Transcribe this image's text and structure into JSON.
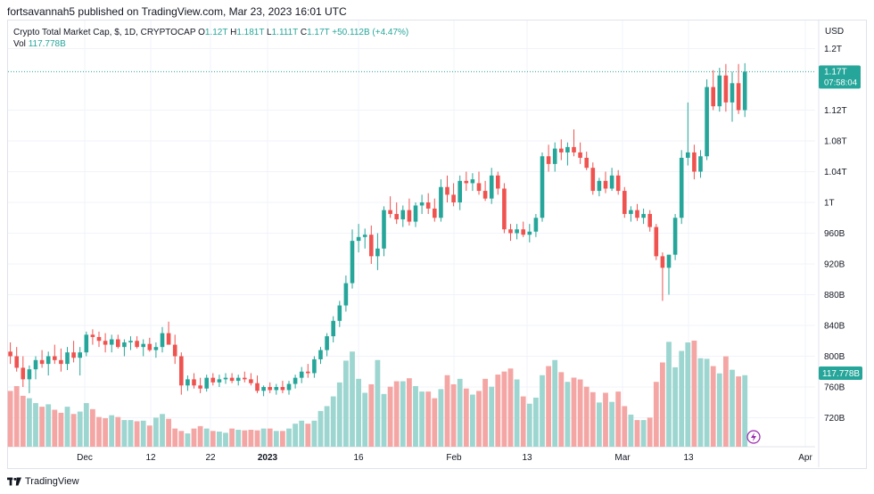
{
  "header": {
    "publisher_line": "fortsavannah5 published on TradingView.com, Mar 23, 2023 16:01 UTC"
  },
  "legend": {
    "title": "Crypto Total Market Cap, $, 1D, CRYPTOCAP",
    "o_label": "O",
    "o_value": "1.12T",
    "h_label": "H",
    "h_value": "1.181T",
    "l_label": "L",
    "l_value": "1.111T",
    "c_label": "C",
    "c_value": "1.17T",
    "change": "+50.112B (+4.47%)",
    "vol_label": "Vol",
    "vol_value": "117.778B"
  },
  "axis": {
    "currency": "USD",
    "price_ticks": [
      "1.2T",
      "1.12T",
      "1.08T",
      "1.04T",
      "1T",
      "960B",
      "920B",
      "880B",
      "840B",
      "800B",
      "760B",
      "720B"
    ],
    "time_ticks": [
      "Dec",
      "12",
      "22",
      "2023",
      "16",
      "Feb",
      "13",
      "Mar",
      "13",
      "Apr"
    ]
  },
  "price_tag": {
    "value": "1.17T",
    "countdown": "07:58:04"
  },
  "volume_tag": {
    "value": "117.778B"
  },
  "footer": {
    "brand": "TradingView"
  },
  "colors": {
    "up": "#26a69a",
    "down": "#ef5350",
    "vol_up": "#9dd6d0",
    "vol_down": "#f4a6a4",
    "grid": "#f0f3fa",
    "axis_text": "#131722"
  },
  "chart_data": {
    "type": "candlestick",
    "title": "Crypto Total Market Cap, $, 1D, CRYPTOCAP",
    "x_range": [
      "2022-11-21",
      "2023-03-23"
    ],
    "price_unit": "USD (billions)",
    "ylim": [
      690,
      1240
    ],
    "volume_unit": "USD (billions)",
    "candles": [
      {
        "o": 806,
        "h": 818,
        "l": 790,
        "c": 800,
        "v": 92
      },
      {
        "o": 800,
        "h": 812,
        "l": 780,
        "c": 785,
        "v": 100
      },
      {
        "o": 785,
        "h": 800,
        "l": 760,
        "c": 770,
        "v": 84
      },
      {
        "o": 770,
        "h": 788,
        "l": 752,
        "c": 783,
        "v": 80
      },
      {
        "o": 783,
        "h": 800,
        "l": 770,
        "c": 795,
        "v": 72
      },
      {
        "o": 795,
        "h": 808,
        "l": 785,
        "c": 790,
        "v": 66
      },
      {
        "o": 790,
        "h": 806,
        "l": 775,
        "c": 800,
        "v": 70
      },
      {
        "o": 800,
        "h": 815,
        "l": 790,
        "c": 795,
        "v": 61
      },
      {
        "o": 795,
        "h": 810,
        "l": 780,
        "c": 790,
        "v": 56
      },
      {
        "o": 790,
        "h": 812,
        "l": 782,
        "c": 805,
        "v": 66
      },
      {
        "o": 805,
        "h": 820,
        "l": 792,
        "c": 798,
        "v": 54
      },
      {
        "o": 798,
        "h": 812,
        "l": 775,
        "c": 805,
        "v": 58
      },
      {
        "o": 805,
        "h": 832,
        "l": 800,
        "c": 828,
        "v": 72
      },
      {
        "o": 828,
        "h": 835,
        "l": 815,
        "c": 825,
        "v": 62
      },
      {
        "o": 825,
        "h": 832,
        "l": 812,
        "c": 820,
        "v": 49
      },
      {
        "o": 820,
        "h": 830,
        "l": 805,
        "c": 815,
        "v": 47
      },
      {
        "o": 815,
        "h": 828,
        "l": 805,
        "c": 822,
        "v": 52
      },
      {
        "o": 822,
        "h": 828,
        "l": 810,
        "c": 812,
        "v": 49
      },
      {
        "o": 812,
        "h": 822,
        "l": 800,
        "c": 818,
        "v": 44
      },
      {
        "o": 818,
        "h": 826,
        "l": 808,
        "c": 820,
        "v": 44
      },
      {
        "o": 820,
        "h": 826,
        "l": 810,
        "c": 812,
        "v": 42
      },
      {
        "o": 812,
        "h": 822,
        "l": 800,
        "c": 816,
        "v": 43
      },
      {
        "o": 816,
        "h": 824,
        "l": 806,
        "c": 808,
        "v": 35
      },
      {
        "o": 808,
        "h": 818,
        "l": 798,
        "c": 812,
        "v": 48
      },
      {
        "o": 812,
        "h": 838,
        "l": 805,
        "c": 830,
        "v": 54
      },
      {
        "o": 830,
        "h": 845,
        "l": 818,
        "c": 815,
        "v": 46
      },
      {
        "o": 815,
        "h": 828,
        "l": 790,
        "c": 800,
        "v": 30
      },
      {
        "o": 800,
        "h": 805,
        "l": 750,
        "c": 762,
        "v": 26
      },
      {
        "o": 762,
        "h": 775,
        "l": 755,
        "c": 770,
        "v": 22
      },
      {
        "o": 770,
        "h": 778,
        "l": 758,
        "c": 762,
        "v": 30
      },
      {
        "o": 762,
        "h": 772,
        "l": 752,
        "c": 758,
        "v": 34
      },
      {
        "o": 758,
        "h": 776,
        "l": 754,
        "c": 772,
        "v": 30
      },
      {
        "o": 772,
        "h": 778,
        "l": 762,
        "c": 766,
        "v": 26
      },
      {
        "o": 766,
        "h": 776,
        "l": 760,
        "c": 770,
        "v": 25
      },
      {
        "o": 770,
        "h": 778,
        "l": 764,
        "c": 772,
        "v": 23
      },
      {
        "o": 772,
        "h": 778,
        "l": 765,
        "c": 768,
        "v": 30
      },
      {
        "o": 768,
        "h": 776,
        "l": 762,
        "c": 772,
        "v": 28
      },
      {
        "o": 772,
        "h": 780,
        "l": 766,
        "c": 770,
        "v": 27
      },
      {
        "o": 770,
        "h": 778,
        "l": 762,
        "c": 765,
        "v": 28
      },
      {
        "o": 765,
        "h": 775,
        "l": 752,
        "c": 755,
        "v": 27
      },
      {
        "o": 755,
        "h": 762,
        "l": 748,
        "c": 760,
        "v": 30
      },
      {
        "o": 760,
        "h": 766,
        "l": 752,
        "c": 756,
        "v": 30
      },
      {
        "o": 756,
        "h": 764,
        "l": 750,
        "c": 760,
        "v": 26
      },
      {
        "o": 760,
        "h": 768,
        "l": 752,
        "c": 756,
        "v": 26
      },
      {
        "o": 756,
        "h": 768,
        "l": 750,
        "c": 764,
        "v": 30
      },
      {
        "o": 764,
        "h": 776,
        "l": 758,
        "c": 772,
        "v": 38
      },
      {
        "o": 772,
        "h": 786,
        "l": 765,
        "c": 780,
        "v": 43
      },
      {
        "o": 780,
        "h": 790,
        "l": 772,
        "c": 778,
        "v": 38
      },
      {
        "o": 778,
        "h": 800,
        "l": 772,
        "c": 796,
        "v": 43
      },
      {
        "o": 796,
        "h": 812,
        "l": 790,
        "c": 808,
        "v": 59
      },
      {
        "o": 808,
        "h": 830,
        "l": 800,
        "c": 826,
        "v": 67
      },
      {
        "o": 826,
        "h": 852,
        "l": 818,
        "c": 846,
        "v": 83
      },
      {
        "o": 846,
        "h": 872,
        "l": 838,
        "c": 866,
        "v": 106
      },
      {
        "o": 866,
        "h": 905,
        "l": 858,
        "c": 895,
        "v": 142
      },
      {
        "o": 895,
        "h": 965,
        "l": 888,
        "c": 950,
        "v": 157
      },
      {
        "o": 950,
        "h": 972,
        "l": 935,
        "c": 955,
        "v": 112
      },
      {
        "o": 955,
        "h": 966,
        "l": 940,
        "c": 958,
        "v": 89
      },
      {
        "o": 958,
        "h": 970,
        "l": 920,
        "c": 930,
        "v": 103
      },
      {
        "o": 930,
        "h": 960,
        "l": 912,
        "c": 940,
        "v": 143
      },
      {
        "o": 940,
        "h": 995,
        "l": 930,
        "c": 990,
        "v": 87
      },
      {
        "o": 990,
        "h": 1008,
        "l": 980,
        "c": 985,
        "v": 99
      },
      {
        "o": 985,
        "h": 1000,
        "l": 972,
        "c": 978,
        "v": 108
      },
      {
        "o": 978,
        "h": 996,
        "l": 968,
        "c": 990,
        "v": 108
      },
      {
        "o": 990,
        "h": 1005,
        "l": 970,
        "c": 975,
        "v": 113
      },
      {
        "o": 975,
        "h": 1000,
        "l": 968,
        "c": 996,
        "v": 100
      },
      {
        "o": 996,
        "h": 1010,
        "l": 985,
        "c": 1000,
        "v": 91
      },
      {
        "o": 1000,
        "h": 1012,
        "l": 985,
        "c": 992,
        "v": 91
      },
      {
        "o": 992,
        "h": 1005,
        "l": 975,
        "c": 980,
        "v": 80
      },
      {
        "o": 980,
        "h": 1030,
        "l": 975,
        "c": 1020,
        "v": 95
      },
      {
        "o": 1020,
        "h": 1035,
        "l": 1000,
        "c": 1010,
        "v": 118
      },
      {
        "o": 1010,
        "h": 1025,
        "l": 995,
        "c": 1000,
        "v": 103
      },
      {
        "o": 1000,
        "h": 1035,
        "l": 990,
        "c": 1028,
        "v": 112
      },
      {
        "o": 1028,
        "h": 1040,
        "l": 1015,
        "c": 1025,
        "v": 96
      },
      {
        "o": 1025,
        "h": 1038,
        "l": 1015,
        "c": 1030,
        "v": 86
      },
      {
        "o": 1025,
        "h": 1040,
        "l": 1010,
        "c": 1015,
        "v": 92
      },
      {
        "o": 1015,
        "h": 1028,
        "l": 1002,
        "c": 1005,
        "v": 112
      },
      {
        "o": 1005,
        "h": 1045,
        "l": 998,
        "c": 1035,
        "v": 99
      },
      {
        "o": 1035,
        "h": 1040,
        "l": 1010,
        "c": 1018,
        "v": 119
      },
      {
        "o": 1018,
        "h": 1025,
        "l": 960,
        "c": 965,
        "v": 124
      },
      {
        "o": 965,
        "h": 972,
        "l": 950,
        "c": 960,
        "v": 129
      },
      {
        "o": 960,
        "h": 972,
        "l": 952,
        "c": 965,
        "v": 111
      },
      {
        "o": 965,
        "h": 975,
        "l": 955,
        "c": 958,
        "v": 83
      },
      {
        "o": 958,
        "h": 972,
        "l": 948,
        "c": 962,
        "v": 71
      },
      {
        "o": 962,
        "h": 985,
        "l": 955,
        "c": 980,
        "v": 81
      },
      {
        "o": 980,
        "h": 1065,
        "l": 975,
        "c": 1060,
        "v": 118
      },
      {
        "o": 1060,
        "h": 1075,
        "l": 1040,
        "c": 1050,
        "v": 133
      },
      {
        "o": 1050,
        "h": 1078,
        "l": 1040,
        "c": 1070,
        "v": 143
      },
      {
        "o": 1070,
        "h": 1082,
        "l": 1055,
        "c": 1065,
        "v": 123
      },
      {
        "o": 1065,
        "h": 1078,
        "l": 1048,
        "c": 1072,
        "v": 107
      },
      {
        "o": 1072,
        "h": 1095,
        "l": 1060,
        "c": 1065,
        "v": 114
      },
      {
        "o": 1065,
        "h": 1078,
        "l": 1050,
        "c": 1058,
        "v": 111
      },
      {
        "o": 1058,
        "h": 1066,
        "l": 1042,
        "c": 1045,
        "v": 99
      },
      {
        "o": 1045,
        "h": 1052,
        "l": 1010,
        "c": 1015,
        "v": 90
      },
      {
        "o": 1015,
        "h": 1032,
        "l": 1008,
        "c": 1028,
        "v": 73
      },
      {
        "o": 1028,
        "h": 1040,
        "l": 1012,
        "c": 1018,
        "v": 89
      },
      {
        "o": 1018,
        "h": 1045,
        "l": 1015,
        "c": 1035,
        "v": 74
      },
      {
        "o": 1035,
        "h": 1042,
        "l": 1010,
        "c": 1015,
        "v": 91
      },
      {
        "o": 1015,
        "h": 1020,
        "l": 980,
        "c": 985,
        "v": 67
      },
      {
        "o": 985,
        "h": 995,
        "l": 975,
        "c": 990,
        "v": 53
      },
      {
        "o": 990,
        "h": 998,
        "l": 976,
        "c": 980,
        "v": 44
      },
      {
        "o": 980,
        "h": 992,
        "l": 972,
        "c": 985,
        "v": 44
      },
      {
        "o": 985,
        "h": 990,
        "l": 962,
        "c": 968,
        "v": 48
      },
      {
        "o": 968,
        "h": 972,
        "l": 925,
        "c": 930,
        "v": 107
      },
      {
        "o": 930,
        "h": 935,
        "l": 872,
        "c": 915,
        "v": 139
      },
      {
        "o": 915,
        "h": 932,
        "l": 880,
        "c": 932,
        "v": 173
      },
      {
        "o": 932,
        "h": 985,
        "l": 925,
        "c": 980,
        "v": 131
      },
      {
        "o": 980,
        "h": 1068,
        "l": 972,
        "c": 1058,
        "v": 158
      },
      {
        "o": 1058,
        "h": 1130,
        "l": 1048,
        "c": 1065,
        "v": 172
      },
      {
        "o": 1065,
        "h": 1075,
        "l": 1030,
        "c": 1040,
        "v": 175
      },
      {
        "o": 1040,
        "h": 1068,
        "l": 1032,
        "c": 1060,
        "v": 146
      },
      {
        "o": 1060,
        "h": 1160,
        "l": 1055,
        "c": 1150,
        "v": 145
      },
      {
        "o": 1150,
        "h": 1172,
        "l": 1120,
        "c": 1125,
        "v": 133
      },
      {
        "o": 1125,
        "h": 1175,
        "l": 1118,
        "c": 1165,
        "v": 121
      },
      {
        "o": 1165,
        "h": 1180,
        "l": 1118,
        "c": 1130,
        "v": 149
      },
      {
        "o": 1130,
        "h": 1170,
        "l": 1105,
        "c": 1155,
        "v": 127
      },
      {
        "o": 1155,
        "h": 1180,
        "l": 1115,
        "c": 1120,
        "v": 116
      },
      {
        "o": 1120,
        "h": 1181,
        "l": 1111,
        "c": 1170,
        "v": 118
      }
    ]
  }
}
